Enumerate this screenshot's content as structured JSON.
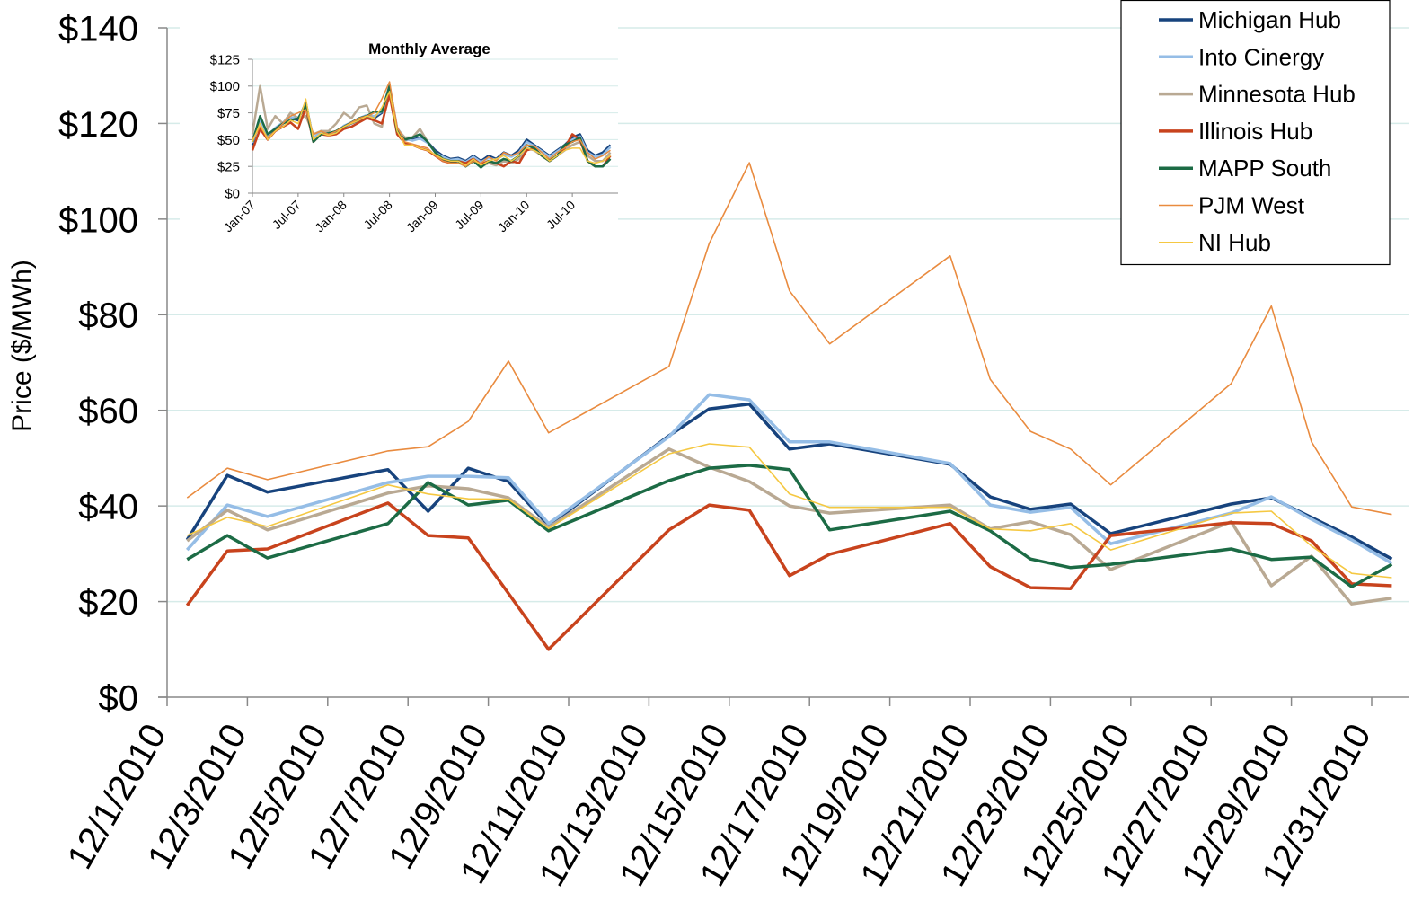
{
  "chart_data": [
    {
      "type": "line",
      "y_label": "Price ($/MWh)",
      "x": [
        "12/1/2010",
        "12/2/2010",
        "12/3/2010",
        "12/6/2010",
        "12/7/2010",
        "12/8/2010",
        "12/9/2010",
        "12/10/2010",
        "12/13/2010",
        "12/14/2010",
        "12/15/2010",
        "12/16/2010",
        "12/17/2010",
        "12/20/2010",
        "12/21/2010",
        "12/22/2010",
        "12/23/2010",
        "12/24/2010",
        "12/27/2010",
        "12/28/2010",
        "12/29/2010",
        "12/30/2010",
        "12/31/2010"
      ],
      "xticks": [
        "12/1/2010",
        "12/3/2010",
        "12/5/2010",
        "12/7/2010",
        "12/9/2010",
        "12/11/2010",
        "12/13/2010",
        "12/15/2010",
        "12/17/2010",
        "12/19/2010",
        "12/21/2010",
        "12/23/2010",
        "12/25/2010",
        "12/27/2010",
        "12/29/2010",
        "12/31/2010"
      ],
      "ylim": [
        0,
        140
      ],
      "yticks": [
        {
          "value": 0,
          "label": "$0"
        },
        {
          "value": 20,
          "label": "$20"
        },
        {
          "value": 40,
          "label": "$40"
        },
        {
          "value": 60,
          "label": "$60"
        },
        {
          "value": 80,
          "label": "$80"
        },
        {
          "value": 100,
          "label": "$100"
        },
        {
          "value": 120,
          "label": "$120"
        },
        {
          "value": 140,
          "label": "$140"
        }
      ],
      "grid": true,
      "legend": "top-right",
      "series": [
        {
          "name": "Michigan Hub",
          "color": "#17437d",
          "values": [
            32.9,
            46.4,
            42.9,
            47.6,
            38.9,
            47.9,
            45.1,
            35.9,
            54.7,
            60.3,
            61.3,
            51.9,
            53,
            48.7,
            41.9,
            39.3,
            40.4,
            34.2,
            40.4,
            41.7,
            37.6,
            33.5,
            28.9
          ]
        },
        {
          "name": "Into Cinergy",
          "color": "#95bde6",
          "values": [
            30.8,
            40.2,
            37.8,
            44.9,
            46.2,
            46.2,
            45.9,
            36.3,
            54.5,
            63.3,
            62.2,
            53.4,
            53.4,
            48.9,
            40.2,
            38.7,
            39.7,
            32.1,
            38.5,
            41.9,
            37.2,
            32.9,
            28
          ]
        },
        {
          "name": "Minnesota Hub",
          "color": "#b9a993",
          "values": [
            32.7,
            39.1,
            35,
            42.7,
            44.2,
            43.6,
            41.7,
            35.5,
            51.9,
            48.1,
            45.1,
            40,
            38.5,
            40.2,
            35.2,
            36.7,
            34,
            26.7,
            36.7,
            23.3,
            29.5,
            19.5,
            20.7
          ]
        },
        {
          "name": "Illinois Hub",
          "color": "#c8431d",
          "values": [
            19.2,
            30.6,
            31,
            40.6,
            33.8,
            33.3,
            21.7,
            10,
            35,
            40.2,
            39.1,
            25.4,
            29.9,
            36.3,
            27.3,
            22.9,
            22.7,
            33.8,
            36.5,
            36.3,
            32.7,
            23.7,
            23.3
          ]
        },
        {
          "name": "MAPP South",
          "color": "#1c6b45",
          "values": [
            28.8,
            33.8,
            29.1,
            36.3,
            44.9,
            40.2,
            41.2,
            34.8,
            45.3,
            47.9,
            48.5,
            47.6,
            35,
            38.9,
            34.8,
            28.9,
            27.1,
            27.8,
            31,
            28.8,
            29.3,
            23.1,
            27.8
          ]
        },
        {
          "name": "PJM West",
          "color": "#e98b3f",
          "values": [
            41.7,
            47.9,
            45.5,
            51.5,
            52.4,
            57.7,
            70.3,
            55.3,
            69.2,
            94.9,
            111.8,
            85,
            73.9,
            92.3,
            66.5,
            55.6,
            51.9,
            44.4,
            65.6,
            81.8,
            53.4,
            39.8,
            38.2
          ]
        },
        {
          "name": "NI Hub",
          "color": "#f5c842",
          "values": [
            33.8,
            37.6,
            35.7,
            44.4,
            42.5,
            41.5,
            41.4,
            35.3,
            50.9,
            53,
            52.3,
            42.5,
            39.7,
            39.7,
            35.2,
            34.8,
            36.3,
            30.8,
            38.5,
            38.9,
            31.6,
            25.9,
            25
          ]
        }
      ]
    },
    {
      "type": "line",
      "title": "Monthly Average",
      "categories": [
        "Jan-07",
        null,
        null,
        null,
        null,
        null,
        "Jul-07",
        null,
        null,
        null,
        null,
        null,
        "Jan-08",
        null,
        null,
        null,
        null,
        null,
        "Jul-08",
        null,
        null,
        null,
        null,
        null,
        "Jan-09",
        null,
        null,
        null,
        null,
        null,
        "Jul-09",
        null,
        null,
        null,
        null,
        null,
        "Jan-10",
        null,
        null,
        null,
        null,
        null,
        "Jul-10",
        null,
        null,
        null,
        null,
        null
      ],
      "ylim": [
        0,
        125
      ],
      "yticks": [
        {
          "value": 0,
          "label": "$0"
        },
        {
          "value": 25,
          "label": "$25"
        },
        {
          "value": 50,
          "label": "$50"
        },
        {
          "value": 75,
          "label": "$75"
        },
        {
          "value": 100,
          "label": "$100"
        },
        {
          "value": 125,
          "label": "$125"
        }
      ],
      "grid": true,
      "series": [
        {
          "color": "#17437d",
          "values": [
            45,
            70,
            52,
            60,
            65,
            70,
            68,
            85,
            50,
            58,
            55,
            58,
            62,
            65,
            68,
            72,
            70,
            75,
            100,
            60,
            50,
            50,
            52,
            48,
            40,
            35,
            32,
            33,
            30,
            35,
            30,
            35,
            32,
            38,
            35,
            40,
            50,
            45,
            40,
            35,
            40,
            45,
            52,
            55,
            40,
            35,
            38,
            45
          ]
        },
        {
          "color": "#95bde6",
          "values": [
            47,
            68,
            54,
            61,
            66,
            71,
            70,
            82,
            52,
            57,
            56,
            57,
            63,
            66,
            70,
            73,
            72,
            76,
            101,
            61,
            51,
            49,
            51,
            47,
            38,
            34,
            31,
            32,
            29,
            34,
            29,
            33,
            31,
            36,
            34,
            38,
            48,
            44,
            39,
            34,
            39,
            44,
            50,
            53,
            38,
            34,
            36,
            43
          ]
        },
        {
          "color": "#b9a993",
          "values": [
            55,
            100,
            60,
            72,
            65,
            75,
            70,
            72,
            55,
            58,
            58,
            65,
            75,
            70,
            80,
            82,
            65,
            62,
            98,
            60,
            52,
            52,
            60,
            48,
            38,
            32,
            30,
            30,
            28,
            30,
            25,
            28,
            26,
            30,
            28,
            32,
            42,
            40,
            35,
            30,
            35,
            40,
            45,
            48,
            35,
            30,
            30,
            38
          ]
        },
        {
          "color": "#c8431d",
          "values": [
            40,
            60,
            50,
            58,
            62,
            66,
            60,
            80,
            48,
            55,
            54,
            55,
            60,
            62,
            66,
            70,
            68,
            65,
            92,
            55,
            47,
            45,
            42,
            40,
            35,
            30,
            28,
            30,
            28,
            32,
            27,
            30,
            28,
            25,
            30,
            28,
            40,
            42,
            35,
            30,
            35,
            42,
            55,
            50,
            30,
            25,
            25,
            35
          ]
        },
        {
          "color": "#1c6b45",
          "values": [
            48,
            72,
            55,
            60,
            65,
            68,
            70,
            82,
            48,
            55,
            56,
            58,
            62,
            66,
            70,
            72,
            76,
            76,
            100,
            58,
            50,
            52,
            55,
            48,
            38,
            32,
            30,
            30,
            25,
            30,
            24,
            30,
            28,
            32,
            30,
            35,
            45,
            42,
            35,
            30,
            35,
            45,
            48,
            52,
            30,
            25,
            25,
            32
          ]
        },
        {
          "color": "#e98b3f",
          "values": [
            50,
            62,
            52,
            58,
            65,
            72,
            75,
            78,
            55,
            58,
            55,
            58,
            62,
            66,
            70,
            72,
            75,
            88,
            104,
            62,
            48,
            46,
            44,
            42,
            35,
            30,
            28,
            28,
            25,
            30,
            28,
            34,
            30,
            38,
            35,
            38,
            45,
            44,
            38,
            32,
            38,
            42,
            48,
            50,
            38,
            32,
            35,
            40
          ]
        },
        {
          "color": "#f5c842",
          "values": [
            48,
            65,
            50,
            58,
            62,
            68,
            65,
            88,
            50,
            56,
            54,
            56,
            62,
            65,
            68,
            72,
            70,
            80,
            95,
            58,
            45,
            45,
            42,
            40,
            36,
            32,
            30,
            30,
            26,
            32,
            26,
            30,
            32,
            35,
            30,
            35,
            42,
            40,
            36,
            30,
            35,
            40,
            42,
            42,
            30,
            28,
            30,
            35
          ]
        }
      ]
    }
  ]
}
